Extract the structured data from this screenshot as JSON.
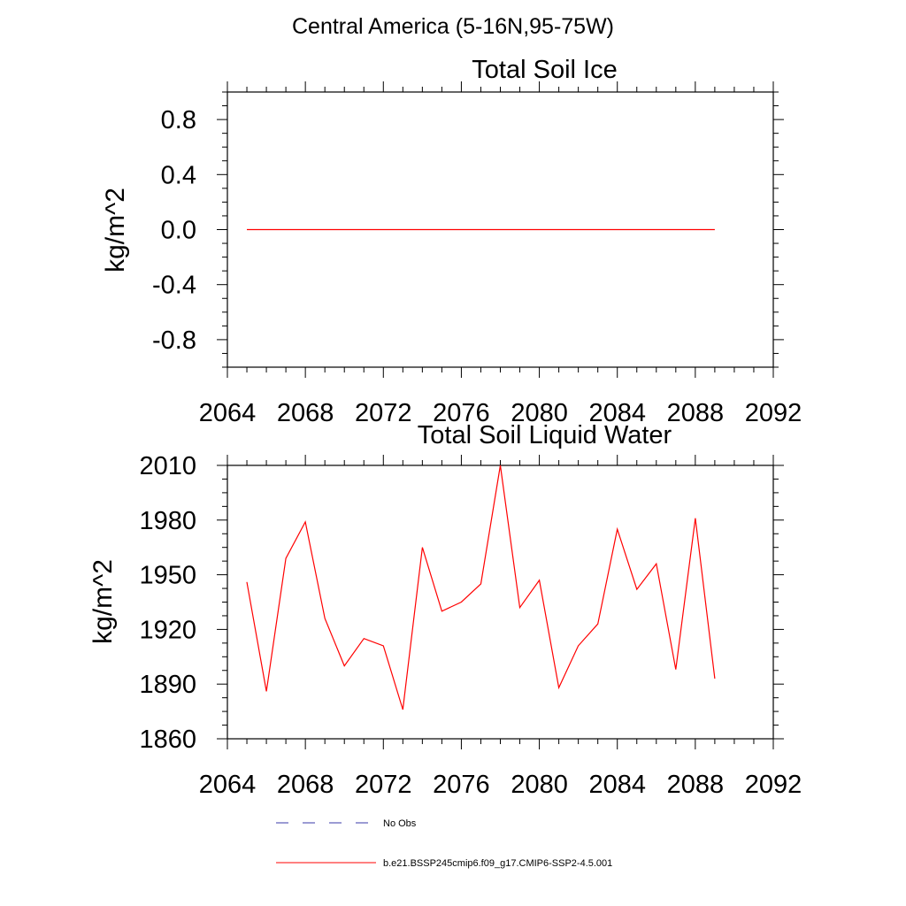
{
  "page": {
    "title": "Central America (5-16N,95-75W)"
  },
  "chart_data": [
    {
      "type": "line",
      "title": "Total Soil Ice",
      "ylabel": "kg/m^2",
      "xlabel": "",
      "xlim": [
        2064,
        2092
      ],
      "ylim": [
        -1.0,
        1.0
      ],
      "xticks": [
        2064,
        2068,
        2072,
        2076,
        2080,
        2084,
        2088,
        2092
      ],
      "yticks": [
        -0.8,
        -0.4,
        0.0,
        0.4,
        0.8
      ],
      "ytick_labels": [
        "-0.8",
        "-0.4",
        "0.0",
        "0.4",
        "0.8"
      ],
      "x": [
        2065,
        2066,
        2067,
        2068,
        2069,
        2070,
        2071,
        2072,
        2073,
        2074,
        2075,
        2076,
        2077,
        2078,
        2079,
        2080,
        2081,
        2082,
        2083,
        2084,
        2085,
        2086,
        2087,
        2088,
        2089
      ],
      "series": [
        {
          "name": "b.e21.BSSP245cmip6.f09_g17.CMIP6-SSP2-4.5.001",
          "color": "#ff0000",
          "values": [
            0,
            0,
            0,
            0,
            0,
            0,
            0,
            0,
            0,
            0,
            0,
            0,
            0,
            0,
            0,
            0,
            0,
            0,
            0,
            0,
            0,
            0,
            0,
            0,
            0
          ]
        }
      ]
    },
    {
      "type": "line",
      "title": "Total Soil Liquid Water",
      "ylabel": "kg/m^2",
      "xlabel": "",
      "xlim": [
        2064,
        2092
      ],
      "ylim": [
        1860,
        2010
      ],
      "xticks": [
        2064,
        2068,
        2072,
        2076,
        2080,
        2084,
        2088,
        2092
      ],
      "yticks": [
        1860,
        1890,
        1920,
        1950,
        1980,
        2010
      ],
      "ytick_labels": [
        "1860",
        "1890",
        "1920",
        "1950",
        "1980",
        "2010"
      ],
      "x": [
        2065,
        2066,
        2067,
        2068,
        2069,
        2070,
        2071,
        2072,
        2073,
        2074,
        2075,
        2076,
        2077,
        2078,
        2079,
        2080,
        2081,
        2082,
        2083,
        2084,
        2085,
        2086,
        2087,
        2088,
        2089
      ],
      "series": [
        {
          "name": "b.e21.BSSP245cmip6.f09_g17.CMIP6-SSP2-4.5.001",
          "color": "#ff0000",
          "values": [
            1946,
            1886,
            1959,
            1979,
            1926,
            1900,
            1915,
            1911,
            1876,
            1965,
            1930,
            1935,
            1945,
            2010,
            1932,
            1947,
            1888,
            1911,
            1923,
            1975,
            1942,
            1956,
            1898,
            1981,
            1893
          ]
        }
      ]
    }
  ],
  "legend": {
    "entries": [
      {
        "label": "No Obs",
        "color": "#3a3aa8",
        "style": "dashed"
      },
      {
        "label": "b.e21.BSSP245cmip6.f09_g17.CMIP6-SSP2-4.5.001",
        "color": "#ff0000",
        "style": "solid"
      }
    ]
  }
}
